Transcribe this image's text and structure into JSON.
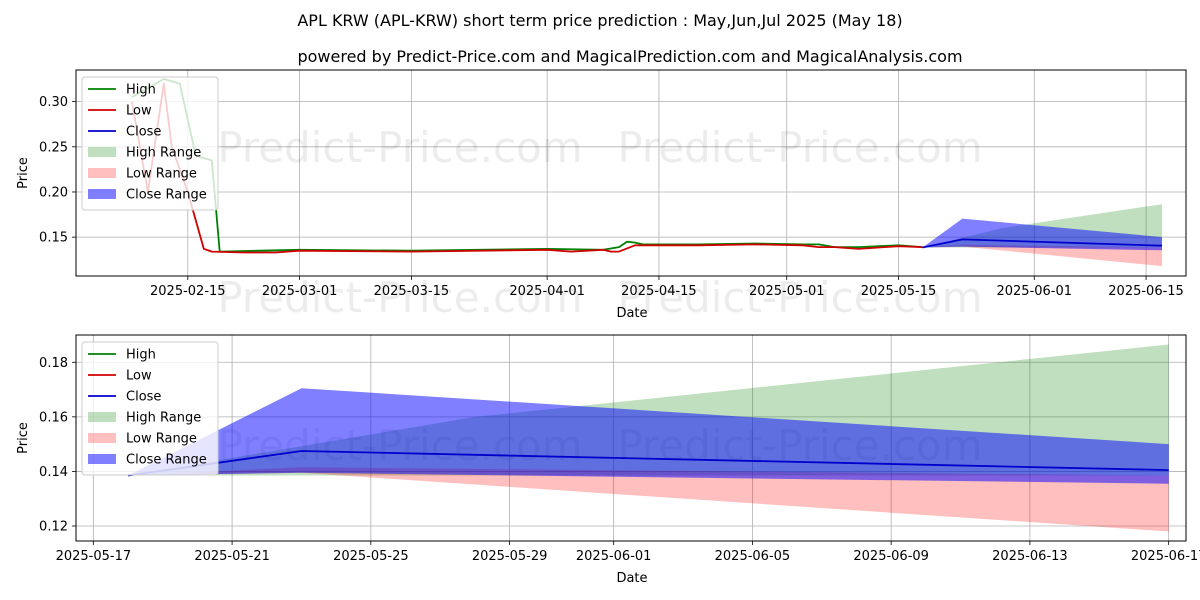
{
  "chart_data": [
    {
      "type": "line",
      "title": "APL KRW (APL-KRW) short term price prediction : May,Jun,Jul 2025 (May 18)",
      "subtitle": "powered by Predict-Price.com and MagicalPrediction.com and MagicalAnalysis.com",
      "xlabel": "Date",
      "ylabel": "Price",
      "xlim": [
        "2025-02-01",
        "2025-06-20"
      ],
      "ylim": [
        0.107,
        0.335
      ],
      "x_ticks": [
        "2025-02-15",
        "2025-03-01",
        "2025-03-15",
        "2025-04-01",
        "2025-04-15",
        "2025-05-01",
        "2025-05-15",
        "2025-06-01",
        "2025-06-15"
      ],
      "y_ticks": [
        "0.15",
        "0.20",
        "0.25",
        "0.30"
      ],
      "grid": true,
      "legend_position": "top-left",
      "watermark": [
        "Predict-Price.com",
        "Predict-Price.com",
        "Predict-Price.com",
        "Predict-Price.com"
      ],
      "series": [
        {
          "name": "High",
          "color": "#008000",
          "points": [
            [
              "2025-02-08",
              0.305
            ],
            [
              "2025-02-12",
              0.325
            ],
            [
              "2025-02-14",
              0.32
            ],
            [
              "2025-02-16",
              0.24
            ],
            [
              "2025-02-18",
              0.235
            ],
            [
              "2025-02-19",
              0.134
            ],
            [
              "2025-03-01",
              0.136
            ],
            [
              "2025-03-15",
              0.135
            ],
            [
              "2025-04-01",
              0.137
            ],
            [
              "2025-04-08",
              0.136
            ],
            [
              "2025-04-10",
              0.139
            ],
            [
              "2025-04-11",
              0.145
            ],
            [
              "2025-04-12",
              0.144
            ],
            [
              "2025-04-13",
              0.142
            ],
            [
              "2025-04-20",
              0.142
            ],
            [
              "2025-04-27",
              0.143
            ],
            [
              "2025-05-03",
              0.142
            ],
            [
              "2025-05-05",
              0.142
            ],
            [
              "2025-05-07",
              0.139
            ],
            [
              "2025-05-10",
              0.139
            ],
            [
              "2025-05-15",
              0.141
            ],
            [
              "2025-05-18",
              0.139
            ]
          ]
        },
        {
          "name": "Low",
          "color": "#d00000",
          "points": [
            [
              "2025-02-08",
              0.3
            ],
            [
              "2025-02-10",
              0.2
            ],
            [
              "2025-02-12",
              0.32
            ],
            [
              "2025-02-13",
              0.25
            ],
            [
              "2025-02-15",
              0.2
            ],
            [
              "2025-02-17",
              0.137
            ],
            [
              "2025-02-18",
              0.134
            ],
            [
              "2025-02-22",
              0.133
            ],
            [
              "2025-02-26",
              0.133
            ],
            [
              "2025-03-01",
              0.135
            ],
            [
              "2025-03-15",
              0.134
            ],
            [
              "2025-04-01",
              0.136
            ],
            [
              "2025-04-04",
              0.134
            ],
            [
              "2025-04-08",
              0.136
            ],
            [
              "2025-04-09",
              0.134
            ],
            [
              "2025-04-10",
              0.134
            ],
            [
              "2025-04-12",
              0.141
            ],
            [
              "2025-04-20",
              0.141
            ],
            [
              "2025-04-27",
              0.142
            ],
            [
              "2025-05-03",
              0.141
            ],
            [
              "2025-05-05",
              0.139
            ],
            [
              "2025-05-07",
              0.139
            ],
            [
              "2025-05-10",
              0.137
            ],
            [
              "2025-05-15",
              0.14
            ],
            [
              "2025-05-18",
              0.139
            ]
          ]
        },
        {
          "name": "Close",
          "color": "#0000cc",
          "points": [
            [
              "2025-05-18",
              0.1385
            ],
            [
              "2025-05-23",
              0.1475
            ],
            [
              "2025-06-17",
              0.1405
            ]
          ]
        }
      ],
      "ranges": [
        {
          "name": "High Range",
          "color": "#008000",
          "opacity": 0.25,
          "upper": [
            [
              "2025-05-18",
              0.1385
            ],
            [
              "2025-05-28",
              0.16
            ],
            [
              "2025-06-17",
              0.1865
            ]
          ],
          "lower": [
            [
              "2025-05-18",
              0.1385
            ],
            [
              "2025-06-17",
              0.1385
            ]
          ]
        },
        {
          "name": "Low Range",
          "color": "#ff0000",
          "opacity": 0.25,
          "upper": [
            [
              "2025-05-18",
              0.1385
            ],
            [
              "2025-05-23",
              0.1415
            ],
            [
              "2025-06-17",
              0.1385
            ]
          ],
          "lower": [
            [
              "2025-05-18",
              0.1385
            ],
            [
              "2025-05-23",
              0.1395
            ],
            [
              "2025-06-17",
              0.118
            ]
          ]
        },
        {
          "name": "Close Range",
          "color": "#0000ff",
          "opacity": 0.5,
          "upper": [
            [
              "2025-05-18",
              0.1385
            ],
            [
              "2025-05-23",
              0.1705
            ],
            [
              "2025-06-17",
              0.15
            ]
          ],
          "lower": [
            [
              "2025-05-18",
              0.1385
            ],
            [
              "2025-05-23",
              0.1395
            ],
            [
              "2025-06-17",
              0.1355
            ]
          ]
        }
      ]
    },
    {
      "type": "line",
      "xlabel": "Date",
      "ylabel": "Price",
      "xlim": [
        "2025-05-16T12:00",
        "2025-06-17T12:00"
      ],
      "ylim": [
        0.1145,
        0.19
      ],
      "x_ticks": [
        "2025-05-17",
        "2025-05-21",
        "2025-05-25",
        "2025-05-29",
        "2025-06-01",
        "2025-06-05",
        "2025-06-09",
        "2025-06-13",
        "2025-06-17"
      ],
      "y_ticks": [
        "0.12",
        "0.14",
        "0.16",
        "0.18"
      ],
      "grid": true,
      "legend_position": "top-left",
      "watermark": [
        "Predict-Price.com",
        "Predict-Price.com"
      ],
      "series": [
        {
          "name": "High",
          "color": "#008000",
          "points": []
        },
        {
          "name": "Low",
          "color": "#d00000",
          "points": []
        },
        {
          "name": "Close",
          "color": "#0000cc",
          "points": [
            [
              "2025-05-18",
              0.1385
            ],
            [
              "2025-05-23",
              0.1475
            ],
            [
              "2025-06-17",
              0.1405
            ]
          ]
        }
      ],
      "ranges": [
        {
          "name": "High Range",
          "color": "#008000",
          "opacity": 0.25,
          "upper": [
            [
              "2025-05-18",
              0.1385
            ],
            [
              "2025-05-28",
              0.16
            ],
            [
              "2025-06-17",
              0.1865
            ]
          ],
          "lower": [
            [
              "2025-05-18",
              0.1385
            ],
            [
              "2025-06-17",
              0.1385
            ]
          ]
        },
        {
          "name": "Low Range",
          "color": "#ff0000",
          "opacity": 0.25,
          "upper": [
            [
              "2025-05-18",
              0.1385
            ],
            [
              "2025-05-23",
              0.1415
            ],
            [
              "2025-06-17",
              0.1385
            ]
          ],
          "lower": [
            [
              "2025-05-18",
              0.1385
            ],
            [
              "2025-05-23",
              0.1395
            ],
            [
              "2025-06-17",
              0.118
            ]
          ]
        },
        {
          "name": "Close Range",
          "color": "#0000ff",
          "opacity": 0.5,
          "upper": [
            [
              "2025-05-18",
              0.1385
            ],
            [
              "2025-05-23",
              0.1705
            ],
            [
              "2025-06-17",
              0.15
            ]
          ],
          "lower": [
            [
              "2025-05-18",
              0.1385
            ],
            [
              "2025-05-23",
              0.1395
            ],
            [
              "2025-06-17",
              0.1355
            ]
          ]
        }
      ]
    }
  ]
}
